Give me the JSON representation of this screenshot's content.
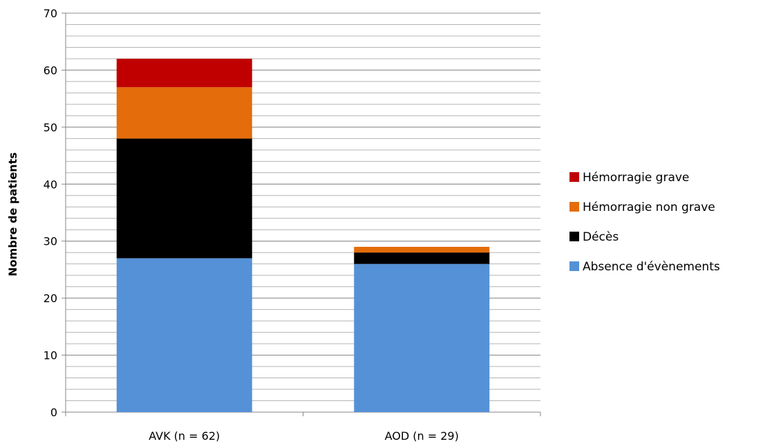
{
  "chart_data": {
    "type": "bar",
    "stacked": true,
    "title": "",
    "xlabel": "",
    "ylabel": "Nombre de patients",
    "ylim": [
      0,
      70
    ],
    "yticks": [
      0,
      10,
      20,
      30,
      40,
      50,
      60,
      70
    ],
    "minor_grid_step": 2,
    "grid": true,
    "legend_position": "right",
    "categories": [
      "AVK (n = 62)",
      "AOD (n = 29)"
    ],
    "series": [
      {
        "name": "Absence d'évènements",
        "color": "#5591D6",
        "values": [
          27,
          26
        ]
      },
      {
        "name": "Décès",
        "color": "#000000",
        "values": [
          21,
          2
        ]
      },
      {
        "name": "Hémorragie non grave",
        "color": "#E46C0A",
        "values": [
          9,
          1
        ]
      },
      {
        "name": "Hémorragie grave",
        "color": "#C00000",
        "values": [
          5,
          0
        ]
      }
    ]
  }
}
